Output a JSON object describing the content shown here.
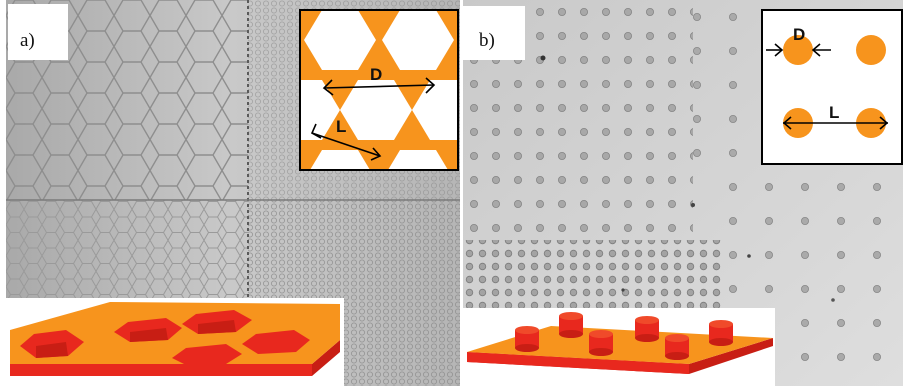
{
  "figure": {
    "panel_a": {
      "label": "a)",
      "inset": {
        "dimension_1": "D",
        "dimension_2": "L"
      }
    },
    "panel_b": {
      "label": "b)",
      "inset": {
        "dimension_1": "D",
        "dimension_2": "L"
      }
    }
  },
  "colors": {
    "orange": "#f7941d",
    "red": "#e8281e",
    "background_gray": "#bdbdbd"
  }
}
